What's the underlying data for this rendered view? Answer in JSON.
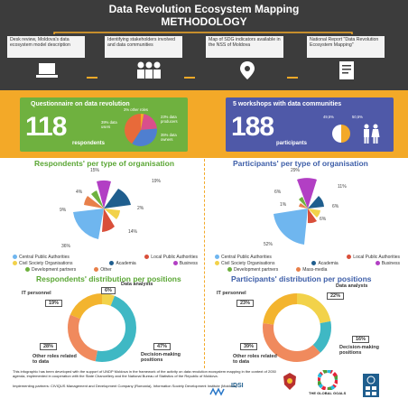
{
  "header": {
    "title_line1": "Data Revolution Ecosystem Mapping",
    "title_line2": "METHODOLOGY",
    "steps": [
      "Desk review, Moldova's data ecosystem model description",
      "Identifying stakeholders involved and data communities",
      "Map of SDG indicators available in the NSS of Moldova",
      "National Report \"Data Revolution Ecosystem Mapping\""
    ]
  },
  "questionnaire": {
    "title": "Questionnaire on data revolution",
    "number": "118",
    "number_label": "respondents",
    "slices": [
      {
        "label": "other roles",
        "pct": "3%"
      },
      {
        "label": "data producers",
        "pct": "23%"
      },
      {
        "label": "data users",
        "pct": "39%"
      },
      {
        "label": "data owners",
        "pct": "35%"
      }
    ]
  },
  "workshops": {
    "title": "5 workshops with data communities",
    "number": "188",
    "number_label": "participants",
    "female_pct": "49,5%",
    "male_pct": "50,5%"
  },
  "resp_org": {
    "title": "Respondents' per type of organisation",
    "labels": [
      "15%",
      "19%",
      "2%",
      "14%",
      "36%",
      "9%",
      "4%"
    ],
    "legend": [
      "Central Public Authorities",
      "Local Public Authorities",
      "Civil Society Organisations",
      "Academia",
      "Business",
      "Development partners",
      "Other"
    ]
  },
  "part_org": {
    "title": "Participants' per type of organisation",
    "labels": [
      "29%",
      "11%",
      "6%",
      "6%",
      "52%",
      "1%",
      "6%"
    ],
    "legend": [
      "Central Public Authorities",
      "Local Public Authorities",
      "Civil Society Organisations",
      "Academia",
      "Business",
      "Development partners",
      "Mass-media"
    ]
  },
  "resp_pos": {
    "title": "Respondents' distribution per positions",
    "data_analysts": "Data analysts",
    "data_analysts_pct": "6%",
    "it_personnel": "IT personnel",
    "it_pct": "19%",
    "other": "Other roles related to data",
    "other_pct": "28%",
    "decision": "Decision-making positions",
    "decision_pct": "47%"
  },
  "part_pos": {
    "title": "Participants' distribution per positions",
    "data_analysts": "Data analysts",
    "data_analysts_pct": "22%",
    "it_personnel": "IT personnel",
    "it_pct": "23%",
    "other": "Other roles related to data",
    "other_pct": "39%",
    "decision": "Decision-making positions",
    "decision_pct": "16%"
  },
  "footer": {
    "text1": "This infographic has been developed with the support of UNDP Moldova in the framework of the activity on data revolution ecosystem mapping in the context of 2030 agenda, implemented in cooperation with the State Chancellery and the National Bureau of Statistics of the Republic of Moldova.",
    "text2": "Implementing partners: CIVIQUS Management and Development Company (Romania), Information Society Development Institute (Moldova)",
    "logo_idsi": "IDSI",
    "logo_goals": "THE GLOBAL GOALS"
  }
}
